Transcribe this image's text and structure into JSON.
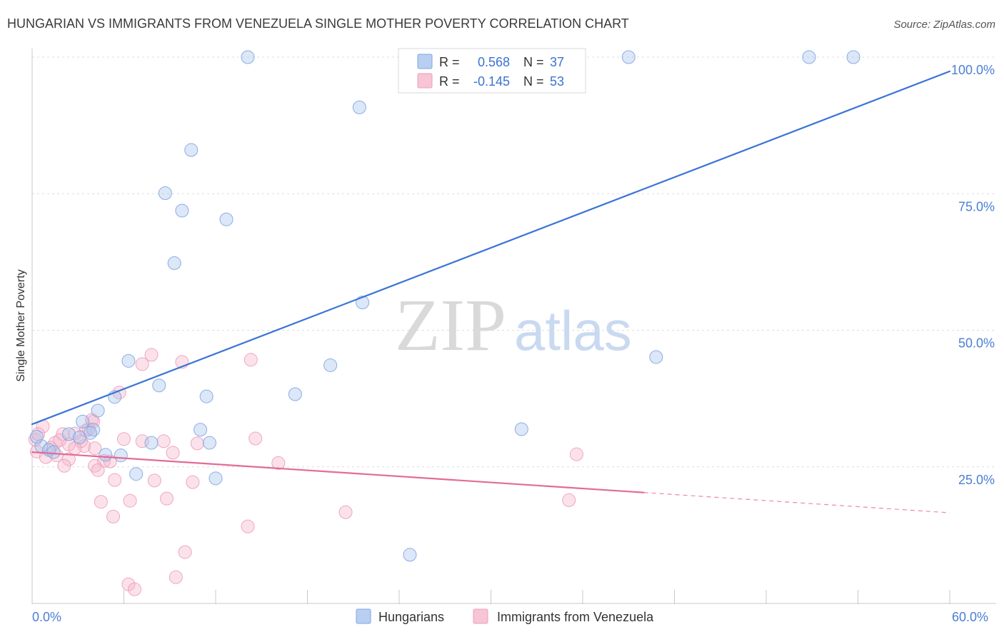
{
  "source": "Source: ZipAtlas.com",
  "watermark": {
    "zip": "ZIP",
    "atlas": "atlas"
  },
  "legend": {
    "r_label": "R =",
    "n_label": "N ="
  },
  "colors": {
    "tick_label": "#4a7fd4",
    "legend_value": "#3b72d1",
    "gridline": "#dcdcdc",
    "axis": "#c8c8c8"
  },
  "chart_data": {
    "type": "scatter",
    "title": "HUNGARIAN VS IMMIGRANTS FROM VENEZUELA SINGLE MOTHER POVERTY CORRELATION CHART",
    "xlabel": "",
    "ylabel": "Single Mother Poverty",
    "xlim": [
      0,
      60
    ],
    "ylim": [
      0,
      100
    ],
    "grid": true,
    "x_ticks": [
      0,
      6,
      12,
      18,
      24,
      30,
      36,
      42,
      48,
      54,
      60
    ],
    "x_tick_labels": [
      {
        "value": 0,
        "label": "0.0%"
      },
      {
        "value": 60,
        "label": "60.0%"
      }
    ],
    "y_ticks": [
      25,
      50,
      75,
      100
    ],
    "y_tick_labels": [
      "25.0%",
      "50.0%",
      "75.0%",
      "100.0%"
    ],
    "series": [
      {
        "name": "Hungarians",
        "r": 0.568,
        "n": 37,
        "marker_fill": "#a8c3ee",
        "marker_stroke": "#7ea5e3",
        "line_color": "#3a74d6",
        "points": [
          [
            14.1,
            100
          ],
          [
            39.0,
            100
          ],
          [
            50.8,
            100
          ],
          [
            53.7,
            100
          ],
          [
            21.4,
            90.8
          ],
          [
            10.4,
            83.0
          ],
          [
            8.7,
            75.1
          ],
          [
            9.8,
            71.9
          ],
          [
            12.7,
            70.3
          ],
          [
            9.3,
            62.3
          ],
          [
            21.6,
            55.1
          ],
          [
            40.8,
            45.1
          ],
          [
            6.3,
            44.4
          ],
          [
            19.5,
            43.6
          ],
          [
            8.3,
            39.9
          ],
          [
            17.2,
            38.3
          ],
          [
            11.4,
            37.9
          ],
          [
            5.4,
            37.8
          ],
          [
            4.3,
            35.3
          ],
          [
            3.3,
            33.3
          ],
          [
            32.0,
            31.9
          ],
          [
            11.0,
            31.8
          ],
          [
            4.0,
            31.8
          ],
          [
            3.8,
            31.2
          ],
          [
            2.4,
            31.0
          ],
          [
            3.1,
            30.4
          ],
          [
            7.8,
            29.4
          ],
          [
            11.6,
            29.4
          ],
          [
            0.6,
            28.8
          ],
          [
            1.1,
            28.1
          ],
          [
            1.4,
            27.7
          ],
          [
            4.8,
            27.2
          ],
          [
            5.8,
            27.1
          ],
          [
            6.8,
            23.7
          ],
          [
            12.0,
            22.9
          ],
          [
            24.7,
            8.9
          ],
          [
            0.3,
            30.5
          ]
        ],
        "trend": {
          "x": [
            0,
            60
          ],
          "y": [
            32.8,
            97.4
          ]
        }
      },
      {
        "name": "Immigrants from Venezuela",
        "r": -0.145,
        "n": 53,
        "marker_fill": "#f5b6ca",
        "marker_stroke": "#ee9fb8",
        "line_color": "#e36b95",
        "points": [
          [
            7.8,
            45.5
          ],
          [
            9.8,
            44.2
          ],
          [
            14.3,
            44.6
          ],
          [
            7.2,
            43.8
          ],
          [
            5.7,
            38.6
          ],
          [
            4.0,
            33.3
          ],
          [
            0.7,
            32.4
          ],
          [
            2.0,
            31.0
          ],
          [
            3.5,
            31.6
          ],
          [
            2.8,
            31.1
          ],
          [
            6.0,
            30.1
          ],
          [
            8.6,
            29.7
          ],
          [
            7.2,
            29.7
          ],
          [
            14.6,
            30.2
          ],
          [
            10.8,
            29.3
          ],
          [
            3.2,
            29.7
          ],
          [
            2.4,
            29.1
          ],
          [
            1.5,
            29.4
          ],
          [
            3.4,
            28.8
          ],
          [
            4.1,
            28.4
          ],
          [
            2.8,
            28.4
          ],
          [
            0.3,
            27.8
          ],
          [
            9.2,
            27.6
          ],
          [
            35.6,
            27.3
          ],
          [
            1.6,
            27.1
          ],
          [
            0.9,
            26.8
          ],
          [
            2.4,
            26.4
          ],
          [
            4.7,
            26.1
          ],
          [
            5.1,
            26.0
          ],
          [
            16.1,
            25.7
          ],
          [
            2.1,
            25.2
          ],
          [
            4.1,
            25.2
          ],
          [
            4.3,
            24.4
          ],
          [
            5.4,
            22.6
          ],
          [
            8.0,
            22.5
          ],
          [
            10.5,
            22.2
          ],
          [
            8.8,
            19.2
          ],
          [
            6.4,
            18.8
          ],
          [
            4.5,
            18.6
          ],
          [
            35.1,
            18.9
          ],
          [
            20.5,
            16.7
          ],
          [
            5.3,
            15.9
          ],
          [
            14.1,
            14.1
          ],
          [
            10.0,
            9.4
          ],
          [
            9.4,
            4.8
          ],
          [
            6.3,
            3.5
          ],
          [
            6.7,
            2.6
          ],
          [
            0.2,
            30.0
          ],
          [
            0.4,
            31.0
          ],
          [
            1.8,
            29.9
          ],
          [
            3.9,
            33.6
          ],
          [
            1.2,
            28.5
          ],
          [
            3.7,
            31.9
          ]
        ],
        "trend": {
          "x": [
            0,
            60
          ],
          "y": [
            27.7,
            16.6
          ],
          "solid_until_x": 40
        }
      }
    ]
  }
}
